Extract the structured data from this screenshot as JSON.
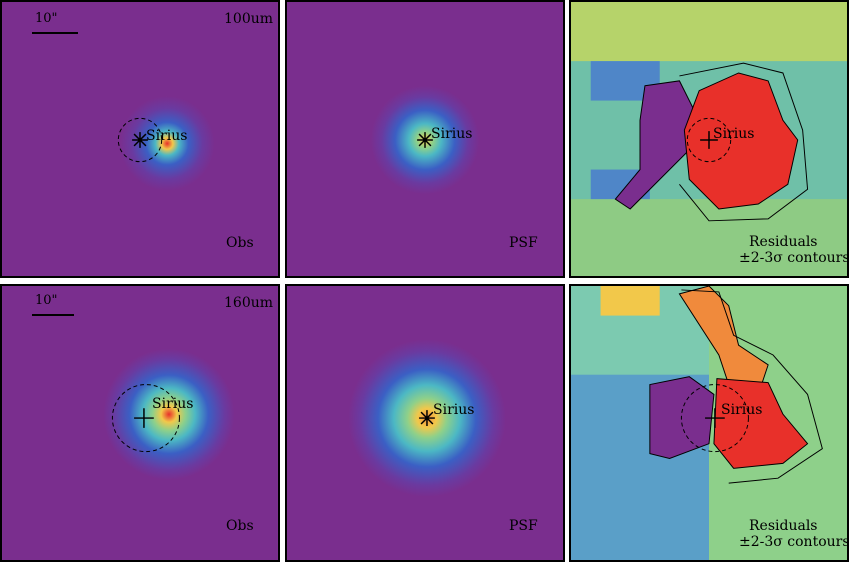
{
  "panels": {
    "top_left": {
      "band": "100um",
      "scale": "10\"",
      "source": "Sirius",
      "corner": "Obs"
    },
    "top_middle": {
      "source": "Sirius",
      "corner": "PSF"
    },
    "top_right": {
      "source": "Sirius",
      "corner": "Residuals",
      "contours": "±2-3σ contours"
    },
    "bottom_left": {
      "band": "160um",
      "scale": "10\"",
      "source": "Sirius",
      "corner": "Obs"
    },
    "bottom_middle": {
      "source": "Sirius",
      "corner": "PSF"
    },
    "bottom_right": {
      "source": "Sirius",
      "corner": "Residuals",
      "contours": "±2-3σ contours"
    }
  },
  "colors": {
    "background_purple": "#7a2e8e",
    "blue": "#3b5fc4",
    "cyan": "#4cb8c4",
    "green": "#8ed08a",
    "yellow": "#f2c84a",
    "orange": "#f08a3c",
    "red": "#e8302a"
  }
}
